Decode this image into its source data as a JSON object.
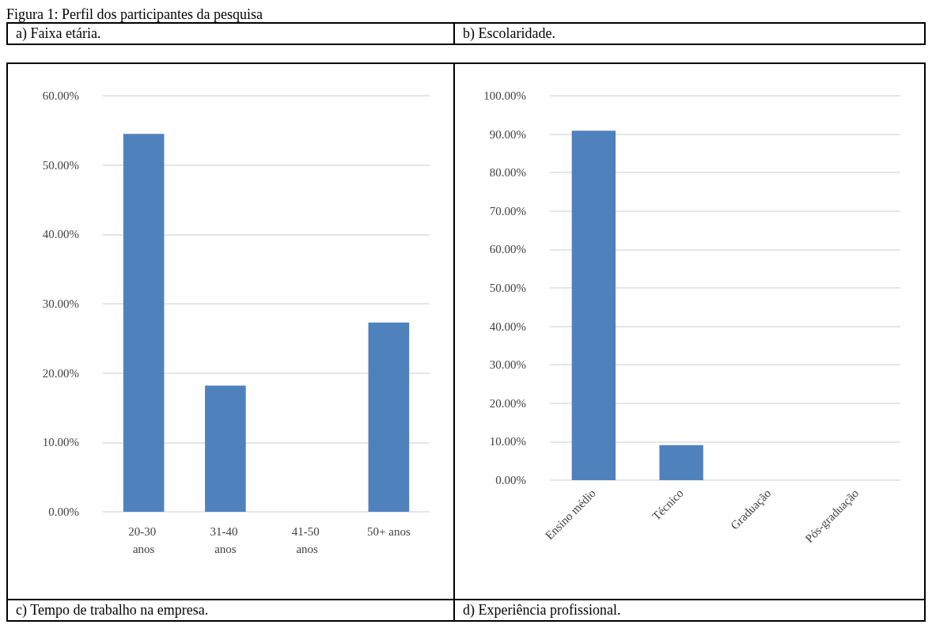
{
  "chart_data": [
    {
      "type": "bar",
      "title": "Figura 1: Perfil dos participantes da pesquisa",
      "subtitle": "a) Faixa etária.",
      "annotations": [
        "c) Tempo de trabalho na empresa."
      ],
      "categories": [
        "20-30 anos",
        "31-40 anos",
        "41-50 anos",
        "50+ anos"
      ],
      "values": [
        54.5,
        18.2,
        0,
        27.3
      ],
      "color": "#4f81bd",
      "ylim": [
        0,
        60
      ],
      "yticks": [
        {
          "value": 0,
          "label": "0.00%"
        },
        {
          "value": 10,
          "label": "10.00%"
        },
        {
          "value": 20,
          "label": "20.00%"
        },
        {
          "value": 30,
          "label": "30.00%"
        },
        {
          "value": 40,
          "label": "40.00%"
        },
        {
          "value": 50,
          "label": "50.00%"
        },
        {
          "value": 60,
          "label": "60.00%"
        }
      ],
      "grid": "y"
    },
    {
      "type": "bar",
      "subtitle": "b) Escolaridade.",
      "annotations": [
        "d) Experiência profissional."
      ],
      "categories": [
        "Ensino médio",
        "Técnico",
        "Graduação",
        "Pós-graduação"
      ],
      "values": [
        90.9,
        9.1,
        0,
        0
      ],
      "color": "#4f81bd",
      "ylim": [
        0,
        100
      ],
      "yticks": [
        {
          "value": 0,
          "label": "0.00%"
        },
        {
          "value": 10,
          "label": "10.00%"
        },
        {
          "value": 20,
          "label": "20.00%"
        },
        {
          "value": 30,
          "label": "30.00%"
        },
        {
          "value": 40,
          "label": "40.00%"
        },
        {
          "value": 50,
          "label": "50.00%"
        },
        {
          "value": 60,
          "label": "60.00%"
        },
        {
          "value": 70,
          "label": "70.00%"
        },
        {
          "value": 80,
          "label": "80.00%"
        },
        {
          "value": 90,
          "label": "90.00%"
        },
        {
          "value": 100,
          "label": "100.00%"
        }
      ],
      "grid": "y"
    }
  ]
}
